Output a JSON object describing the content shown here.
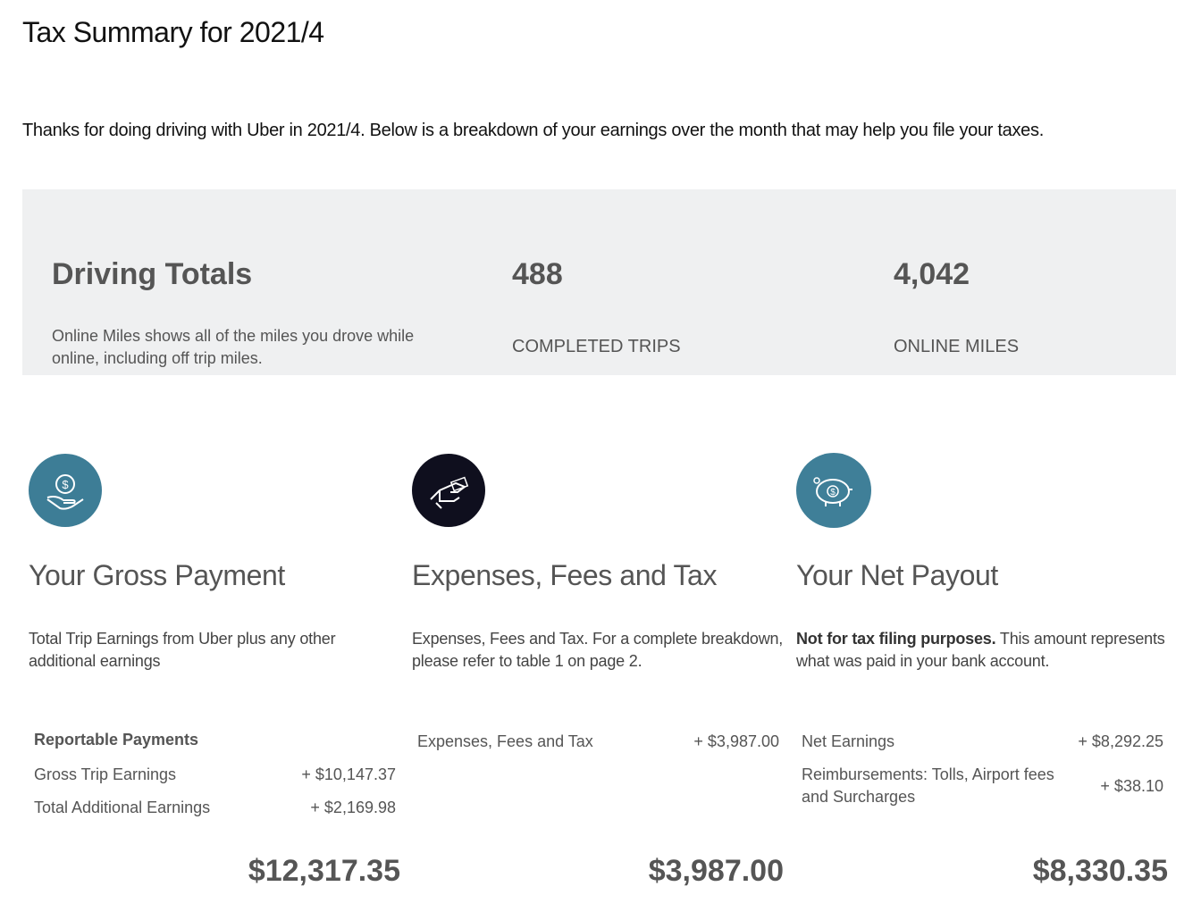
{
  "header": {
    "title": "Tax Summary for 2021/4"
  },
  "intro": "Thanks for doing driving with Uber in 2021/4. Below is a breakdown of your earnings over the month that may help you file your taxes.",
  "totals": {
    "heading": "Driving Totals",
    "note": "Online Miles shows all of the miles you drove while online, including off trip miles.",
    "stats": [
      {
        "value": "488",
        "label": "COMPLETED TRIPS"
      },
      {
        "value": "4,042",
        "label": "ONLINE MILES"
      }
    ]
  },
  "columns": [
    {
      "title": "Your Gross Payment",
      "description": "Total Trip Earnings from Uber plus any other additional earnings",
      "section": "Reportable Payments",
      "rows": [
        {
          "label": "Gross Trip Earnings",
          "amount": "+ $10,147.37"
        },
        {
          "label": "Total Additional Earnings",
          "amount": "+ $2,169.98"
        }
      ],
      "total": "$12,317.35"
    },
    {
      "title": "Expenses, Fees and Tax",
      "description": "Expenses, Fees and Tax. For a complete breakdown, please refer to table 1 on page 2.",
      "rows": [
        {
          "label": "Expenses, Fees and Tax",
          "amount": "+ $3,987.00"
        }
      ],
      "total": "$3,987.00"
    },
    {
      "title": "Your Net Payout",
      "description_bold": "Not for tax filing purposes.",
      "description": "This amount represents what was paid in your bank account.",
      "rows": [
        {
          "label": "Net Earnings",
          "amount": "+ $8,292.25"
        },
        {
          "label": "Reimbursements: Tolls, Airport fees and Surcharges",
          "amount": "+ $38.10"
        }
      ],
      "total": "$8,330.35"
    }
  ]
}
